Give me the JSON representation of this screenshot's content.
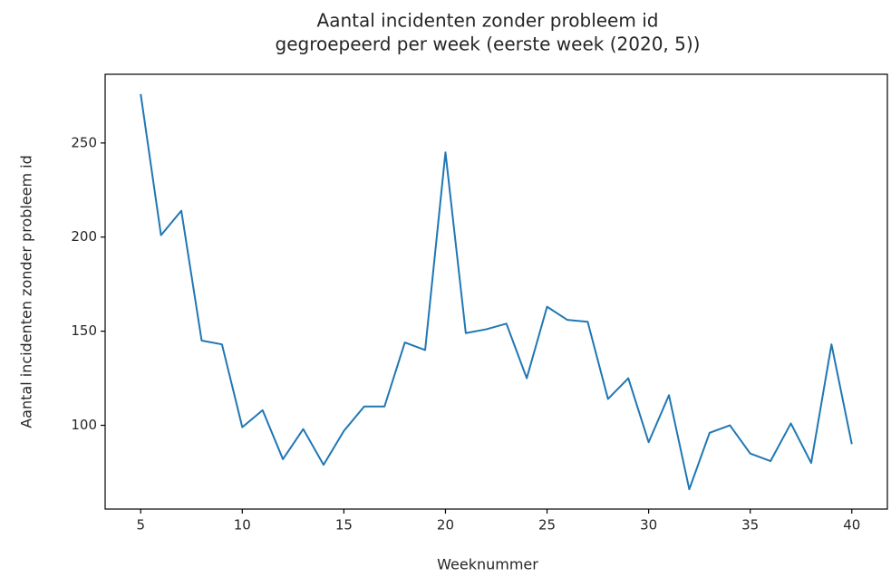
{
  "chart_data": {
    "type": "line",
    "title": [
      "Aantal incidenten zonder probleem id",
      "gegroepeerd per week (eerste week (2020, 5))"
    ],
    "xlabel": "Weeknummer",
    "ylabel": "Aantal incidenten zonder probleem id",
    "x": [
      5,
      6,
      7,
      8,
      9,
      10,
      11,
      12,
      13,
      14,
      15,
      16,
      17,
      18,
      19,
      20,
      21,
      22,
      23,
      24,
      25,
      26,
      27,
      28,
      29,
      30,
      31,
      32,
      33,
      34,
      35,
      36,
      37,
      38,
      39,
      40
    ],
    "series": [
      {
        "color": "#1f77b4",
        "values": [
          276,
          201,
          214,
          145,
          143,
          99,
          108,
          82,
          98,
          79,
          97,
          110,
          110,
          144,
          140,
          245,
          149,
          151,
          154,
          125,
          163,
          156,
          155,
          114,
          125,
          91,
          116,
          66,
          96,
          100,
          85,
          81,
          101,
          80,
          143,
          90
        ]
      }
    ],
    "xlim": [
      3.25,
      41.75
    ],
    "xticks": [
      5,
      10,
      15,
      20,
      25,
      30,
      35,
      40
    ],
    "ylim": [
      55.5,
      286.5
    ],
    "yticks": [
      100,
      150,
      200,
      250
    ],
    "grid": false
  }
}
